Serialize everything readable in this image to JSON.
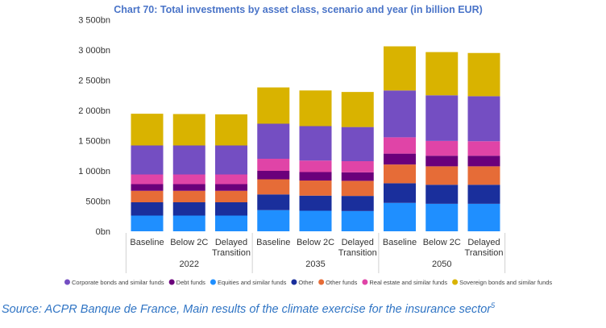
{
  "chart_data": {
    "type": "bar",
    "stacked": true,
    "title": "Chart 70: Total investments by asset class, scenario and year (in billion EUR)",
    "categories": [
      "Baseline",
      "Below 2C",
      "Delayed Transition",
      "Baseline",
      "Below 2C",
      "Delayed Transition",
      "Baseline",
      "Below 2C",
      "Delayed Transition"
    ],
    "category_labels": [
      [
        "Baseline"
      ],
      [
        "Below 2C"
      ],
      [
        "Delayed",
        "Transition"
      ],
      [
        "Baseline"
      ],
      [
        "Below 2C"
      ],
      [
        "Delayed",
        "Transition"
      ],
      [
        "Baseline"
      ],
      [
        "Below 2C"
      ],
      [
        "Delayed",
        "Transition"
      ]
    ],
    "groups": [
      {
        "label": "2022",
        "categories": [
          0,
          1,
          2
        ]
      },
      {
        "label": "2035",
        "categories": [
          3,
          4,
          5
        ]
      },
      {
        "label": "2050",
        "categories": [
          6,
          7,
          8
        ]
      }
    ],
    "y_ticks": [
      "0bn",
      "500bn",
      "1 000bn",
      "1 500bn",
      "2 000bn",
      "2 500bn",
      "3 000bn",
      "3 500bn"
    ],
    "ylim": [
      0,
      3500
    ],
    "grid": false,
    "legend_position": "bottom",
    "series": [
      {
        "name": "Equities and similar funds",
        "color": "#1f8fff",
        "values": [
          260,
          260,
          260,
          350,
          340,
          335,
          470,
          455,
          455
        ]
      },
      {
        "name": "Other",
        "color": "#1a2f9c",
        "values": [
          220,
          220,
          220,
          260,
          250,
          250,
          325,
          315,
          315
        ]
      },
      {
        "name": "Other funds",
        "color": "#e66c37",
        "values": [
          190,
          190,
          190,
          250,
          250,
          250,
          310,
          305,
          305
        ]
      },
      {
        "name": "Debt funds",
        "color": "#6b007b",
        "values": [
          110,
          110,
          110,
          140,
          140,
          140,
          180,
          175,
          175
        ]
      },
      {
        "name": "Real estate and similar funds",
        "color": "#e044a7",
        "values": [
          160,
          160,
          160,
          200,
          190,
          185,
          270,
          245,
          240
        ]
      },
      {
        "name": "Corporate bonds and similar funds",
        "color": "#744ec2",
        "values": [
          480,
          480,
          480,
          580,
          570,
          565,
          775,
          755,
          745
        ]
      },
      {
        "name": "Sovereign bonds and similar funds",
        "color": "#d9b300",
        "values": [
          525,
          520,
          515,
          600,
          590,
          580,
          730,
          715,
          715
        ]
      }
    ],
    "legend_order": [
      "Corporate bonds and similar funds",
      "Debt funds",
      "Equities and similar funds",
      "Other",
      "Other funds",
      "Real estate and similar funds",
      "Sovereign bonds and similar funds"
    ]
  },
  "source": {
    "text": "Source: ACPR Banque de France, Main results of the climate exercise for the insurance sector",
    "footnote": "5"
  }
}
